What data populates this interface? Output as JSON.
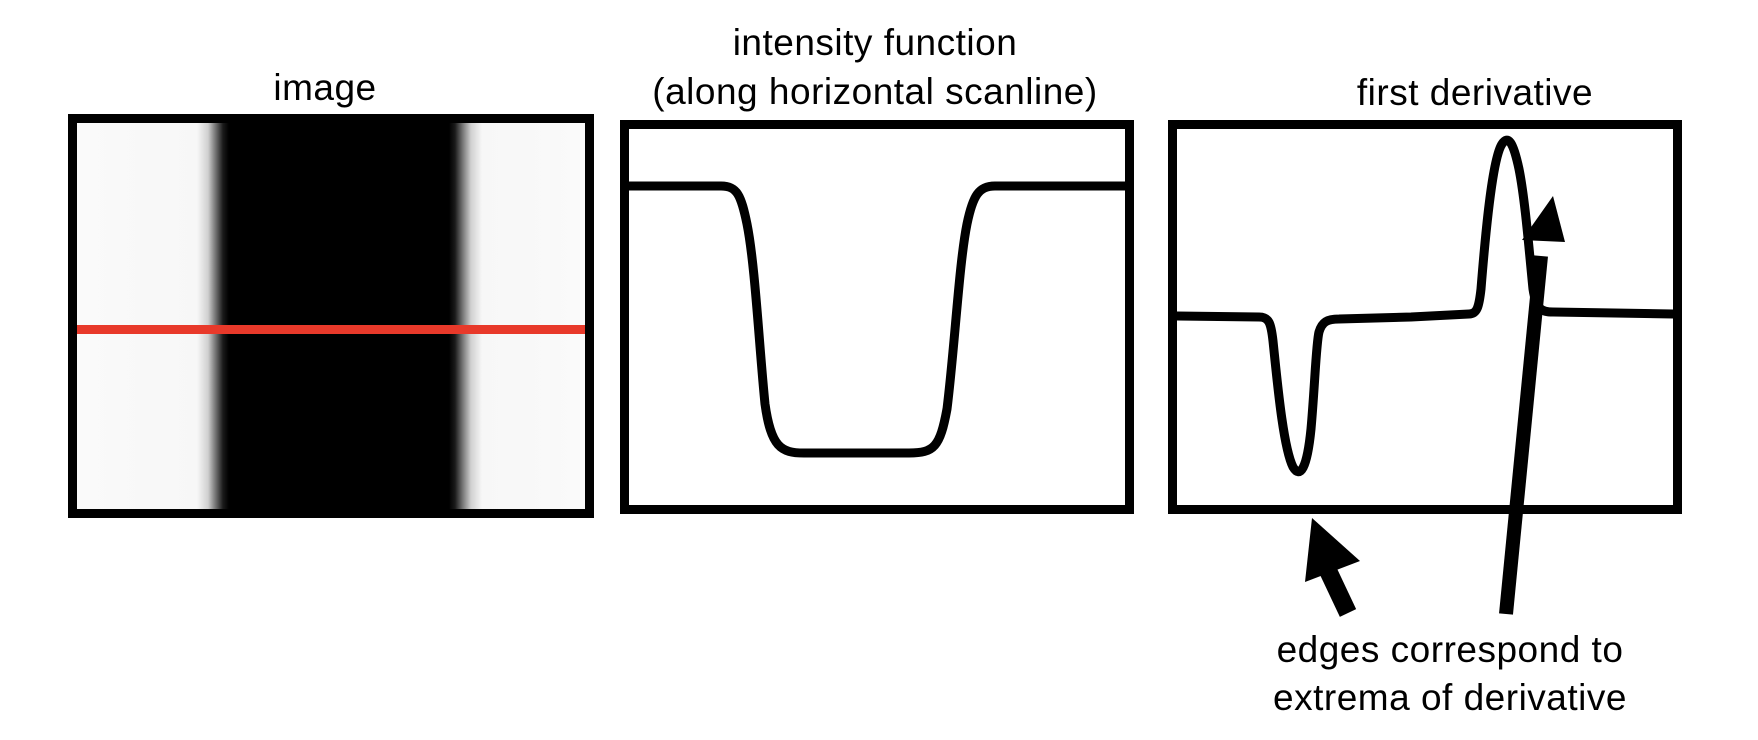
{
  "panels": {
    "image": {
      "title": "image",
      "scanline_color": "#e8392a"
    },
    "intensity": {
      "title_line1": "intensity function",
      "title_line2": "(along horizontal scanline)"
    },
    "derivative": {
      "title": "first derivative"
    }
  },
  "annotation": {
    "line1": "edges correspond to",
    "line2": "extrema of derivative"
  },
  "colors": {
    "frame": "#000000",
    "curve": "#000000",
    "scanline": "#e8392a",
    "background": "#ffffff"
  }
}
